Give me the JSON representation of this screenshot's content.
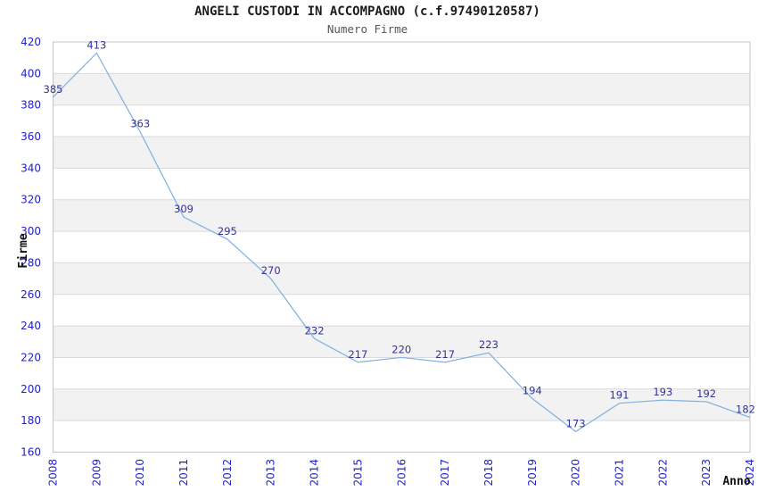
{
  "header": {
    "title": "ANGELI CUSTODI IN ACCOMPAGNO (c.f.97490120587)",
    "subtitle": "Numero Firme"
  },
  "chart_data": {
    "type": "line",
    "title": "ANGELI CUSTODI IN ACCOMPAGNO (c.f.97490120587)",
    "subtitle": "Numero Firme",
    "xlabel": "Anno",
    "ylabel": "Firme",
    "categories": [
      "2008",
      "2009",
      "2010",
      "2011",
      "2012",
      "2013",
      "2014",
      "2015",
      "2016",
      "2017",
      "2018",
      "2019",
      "2020",
      "2021",
      "2022",
      "2023",
      "2024"
    ],
    "values": [
      385,
      413,
      363,
      309,
      295,
      270,
      232,
      217,
      220,
      217,
      223,
      194,
      173,
      191,
      193,
      192,
      182
    ],
    "ylim": [
      160,
      420
    ],
    "ytick_step": 20,
    "yticks": [
      160,
      180,
      200,
      220,
      240,
      260,
      280,
      300,
      320,
      340,
      360,
      380,
      400,
      420
    ],
    "grid": "horizontal alternating bands, gridline every 20",
    "legend": "none",
    "colors": {
      "line": "#7fafe1",
      "tick_label": "#2121cc",
      "data_label": "#333399",
      "band_gray": "#f2f2f2",
      "gridline": "#dadada",
      "plot_border": "#c4c4c4",
      "axis_title": "#111111",
      "title": "#1c1c1c",
      "subtitle": "#555555",
      "background": "#ffffff"
    }
  }
}
